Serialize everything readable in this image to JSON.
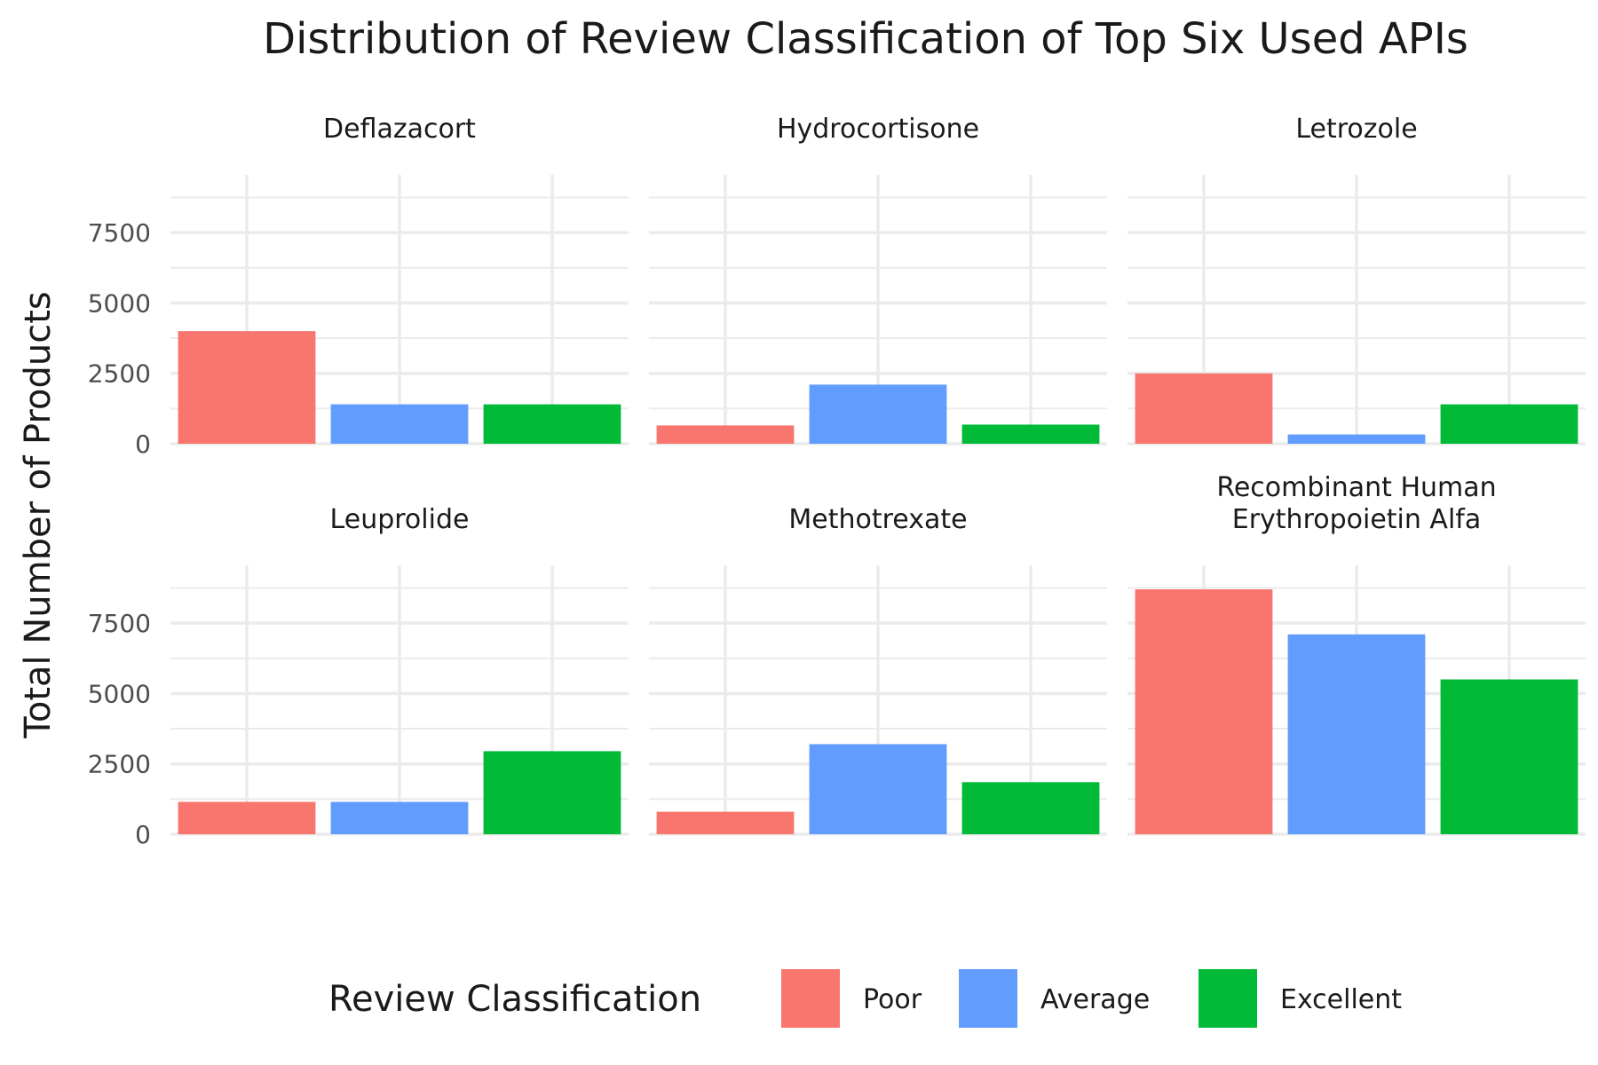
{
  "chart_data": {
    "type": "bar",
    "title": "Distribution of Review Classification of Top Six Used APIs",
    "xlabel": "",
    "ylabel": "Total Number of Products",
    "ylim": [
      0,
      9300
    ],
    "y_ticks": [
      0,
      2500,
      5000,
      7500
    ],
    "grid": true,
    "legend": {
      "title": "Review Classification",
      "position": "bottom",
      "items": [
        {
          "label": "Poor",
          "color": "#F8766D"
        },
        {
          "label": "Average",
          "color": "#619CFF"
        },
        {
          "label": "Excellent",
          "color": "#00BA38"
        }
      ]
    },
    "categories": [
      "Poor",
      "Average",
      "Excellent"
    ],
    "facets": [
      {
        "name": "Deflazacort",
        "name_lines": [
          "Deflazacort"
        ],
        "values": [
          4000,
          1400,
          1400
        ]
      },
      {
        "name": "Hydrocortisone",
        "name_lines": [
          "Hydrocortisone"
        ],
        "values": [
          650,
          2100,
          680
        ]
      },
      {
        "name": "Letrozole",
        "name_lines": [
          "Letrozole"
        ],
        "values": [
          2500,
          330,
          1400
        ]
      },
      {
        "name": "Leuprolide",
        "name_lines": [
          "Leuprolide"
        ],
        "values": [
          1150,
          1150,
          2950
        ]
      },
      {
        "name": "Methotrexate",
        "name_lines": [
          "Methotrexate"
        ],
        "values": [
          800,
          3200,
          1850
        ]
      },
      {
        "name": "Recombinant Human Erythropoietin Alfa",
        "name_lines": [
          "Recombinant Human",
          "Erythropoietin Alfa"
        ],
        "values": [
          8700,
          7100,
          5500
        ]
      }
    ]
  }
}
